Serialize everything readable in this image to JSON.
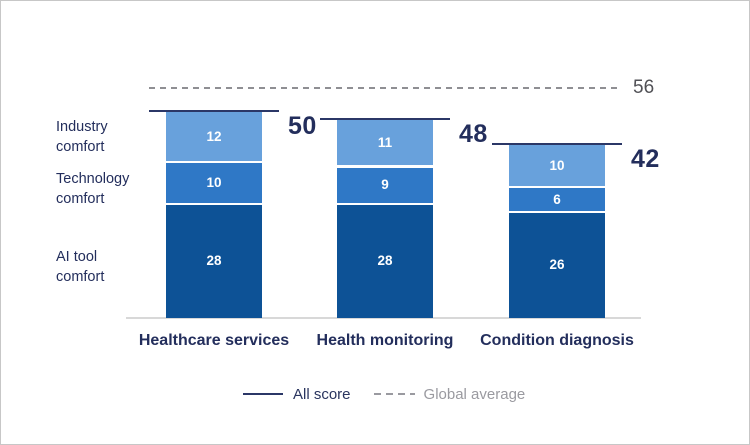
{
  "chart_data": {
    "type": "bar",
    "stacked": true,
    "title": "",
    "categories": [
      "Healthcare services",
      "Health monitoring",
      "Condition diagnosis"
    ],
    "series": [
      {
        "name": "AI tool comfort",
        "color": "#0d5296",
        "values": [
          28,
          28,
          26
        ]
      },
      {
        "name": "Technology comfort",
        "color": "#2f78c6",
        "values": [
          10,
          9,
          6
        ]
      },
      {
        "name": "Industry comfort",
        "color": "#68a1dc",
        "values": [
          12,
          11,
          10
        ]
      }
    ],
    "totals": [
      50,
      48,
      42
    ],
    "global_average": 56,
    "ylim": [
      0,
      60
    ],
    "grid": false,
    "legend_position": "bottom",
    "legend": [
      {
        "label": "All score",
        "style": "solid",
        "color": "#2b3767"
      },
      {
        "label": "Global average",
        "style": "dashed",
        "color": "#9a9aa0"
      }
    ]
  },
  "row_labels": [
    {
      "text": "Industry\ncomfort"
    },
    {
      "text": "Technology\ncomfort"
    },
    {
      "text": "AI tool\ncomfort"
    }
  ],
  "legend": {
    "all_score": "All score",
    "global_average": "Global average"
  },
  "colors": {
    "navy_text": "#232e5c",
    "score_line": "#2b3767",
    "gray_dash": "#8f8f93",
    "gray_text": "#9a9aa0",
    "avg_label": "#515156",
    "baseline": "#d8d8d8",
    "segment_dark": "#0d5296",
    "segment_mid": "#2f78c6",
    "segment_light": "#68a1dc"
  }
}
